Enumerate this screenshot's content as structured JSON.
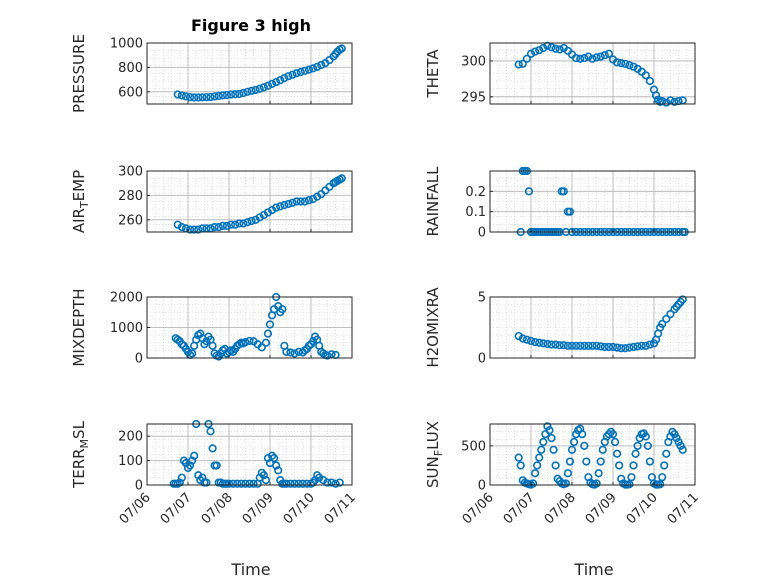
{
  "title": "Figure 3 high",
  "x_axis_label": "Time",
  "x_tick_labels": [
    "07/06",
    "07/07",
    "07/08",
    "07/09",
    "07/10",
    "07/11"
  ],
  "colors": {
    "marker": "#0072bd",
    "axis": "#262626",
    "grid": "#b0b0b0"
  },
  "chart_data": [
    {
      "type": "scatter",
      "ylabel": "PRESSURE",
      "xlim": [
        0,
        5
      ],
      "ylim": [
        500,
        1000
      ],
      "yticks": [
        600,
        800,
        1000
      ],
      "ytick_labels": [
        "600",
        "800",
        "1000"
      ],
      "x": [
        0.75,
        0.85,
        0.95,
        1.05,
        1.15,
        1.25,
        1.35,
        1.45,
        1.55,
        1.65,
        1.75,
        1.85,
        1.95,
        2.05,
        2.15,
        2.25,
        2.35,
        2.45,
        2.55,
        2.65,
        2.75,
        2.85,
        2.95,
        3.05,
        3.15,
        3.25,
        3.35,
        3.45,
        3.55,
        3.65,
        3.75,
        3.85,
        3.95,
        4.05,
        4.15,
        4.25,
        4.35,
        4.45,
        4.55,
        4.6,
        4.65,
        4.7,
        4.75
      ],
      "y": [
        578,
        570,
        562,
        556,
        553,
        553,
        555,
        556,
        557,
        562,
        566,
        571,
        574,
        578,
        580,
        582,
        590,
        600,
        608,
        615,
        625,
        636,
        650,
        665,
        680,
        695,
        712,
        728,
        740,
        752,
        762,
        772,
        782,
        792,
        805,
        820,
        835,
        860,
        890,
        910,
        930,
        945,
        955
      ]
    },
    {
      "type": "scatter",
      "ylabel": "THETA",
      "xlim": [
        0,
        5
      ],
      "ylim": [
        294,
        302.5
      ],
      "yticks": [
        295,
        300
      ],
      "ytick_labels": [
        "295",
        "300"
      ],
      "x": [
        0.7,
        0.8,
        0.9,
        1.0,
        1.1,
        1.2,
        1.3,
        1.4,
        1.5,
        1.6,
        1.7,
        1.8,
        1.9,
        2.0,
        2.1,
        2.2,
        2.3,
        2.4,
        2.5,
        2.6,
        2.7,
        2.8,
        2.9,
        3.0,
        3.1,
        3.2,
        3.3,
        3.4,
        3.5,
        3.6,
        3.7,
        3.8,
        3.9,
        4.0,
        4.05,
        4.1,
        4.15,
        4.2,
        4.3,
        4.4,
        4.5,
        4.6,
        4.7
      ],
      "y": [
        299.5,
        299.6,
        300.3,
        301.0,
        301.3,
        301.5,
        301.8,
        302.1,
        301.9,
        301.7,
        301.6,
        301.8,
        301.4,
        300.9,
        300.4,
        300.3,
        300.4,
        300.6,
        300.3,
        300.5,
        300.6,
        300.8,
        301.0,
        300.2,
        299.8,
        299.7,
        299.6,
        299.4,
        299.2,
        298.9,
        298.5,
        298.0,
        297.2,
        296.0,
        295.2,
        294.6,
        294.3,
        294.4,
        294.2,
        294.5,
        294.3,
        294.4,
        294.5
      ]
    },
    {
      "type": "scatter",
      "ylabel": "AIR_TEMP",
      "xlim": [
        0,
        5
      ],
      "ylim": [
        250,
        300
      ],
      "yticks": [
        260,
        280,
        300
      ],
      "ytick_labels": [
        "260",
        "280",
        "300"
      ],
      "x": [
        0.75,
        0.85,
        0.95,
        1.05,
        1.15,
        1.25,
        1.35,
        1.45,
        1.55,
        1.65,
        1.75,
        1.85,
        1.95,
        2.05,
        2.15,
        2.25,
        2.35,
        2.45,
        2.55,
        2.65,
        2.75,
        2.85,
        2.95,
        3.05,
        3.15,
        3.25,
        3.35,
        3.45,
        3.55,
        3.65,
        3.75,
        3.85,
        3.95,
        4.05,
        4.15,
        4.25,
        4.35,
        4.45,
        4.55,
        4.6,
        4.65,
        4.7,
        4.75
      ],
      "y": [
        256,
        254,
        253,
        252,
        252,
        252,
        253,
        253,
        253,
        254,
        254,
        255,
        255,
        256,
        256,
        257,
        257,
        258,
        259,
        260,
        262,
        264,
        266,
        268,
        270,
        271,
        272,
        273,
        274,
        275,
        275,
        275,
        276,
        277,
        279,
        281,
        284,
        287,
        290,
        291,
        292,
        293,
        294
      ]
    },
    {
      "type": "scatter",
      "ylabel": "RAINFALL",
      "xlim": [
        0,
        5
      ],
      "ylim": [
        0,
        0.3
      ],
      "yticks": [
        0,
        0.1,
        0.2
      ],
      "ytick_labels": [
        "0",
        "0.1",
        "0.2"
      ],
      "x": [
        0.75,
        0.8,
        0.85,
        0.9,
        0.95,
        1.0,
        1.05,
        1.1,
        1.15,
        1.2,
        1.25,
        1.3,
        1.35,
        1.4,
        1.45,
        1.5,
        1.55,
        1.6,
        1.65,
        1.7,
        1.75,
        1.8,
        1.85,
        1.9,
        1.95,
        2.0,
        2.1,
        2.2,
        2.3,
        2.4,
        2.5,
        2.6,
        2.7,
        2.8,
        2.9,
        3.0,
        3.1,
        3.2,
        3.3,
        3.4,
        3.5,
        3.6,
        3.7,
        3.8,
        3.9,
        4.0,
        4.1,
        4.2,
        4.3,
        4.4,
        4.5,
        4.6,
        4.7,
        4.75
      ],
      "y": [
        0,
        0.3,
        0.3,
        0.3,
        0.2,
        0,
        0,
        0,
        0,
        0,
        0,
        0,
        0,
        0,
        0,
        0,
        0,
        0,
        0,
        0,
        0.2,
        0.2,
        0,
        0.1,
        0.1,
        0,
        0,
        0,
        0,
        0,
        0,
        0,
        0,
        0,
        0,
        0,
        0,
        0,
        0,
        0,
        0,
        0,
        0,
        0,
        0,
        0,
        0,
        0,
        0,
        0,
        0,
        0,
        0,
        0
      ]
    },
    {
      "type": "scatter",
      "ylabel": "MIXDEPTH",
      "xlim": [
        0,
        5
      ],
      "ylim": [
        0,
        2000
      ],
      "yticks": [
        0,
        1000,
        2000
      ],
      "ytick_labels": [
        "0",
        "1000",
        "2000"
      ],
      "x": [
        0.7,
        0.75,
        0.8,
        0.85,
        0.9,
        0.95,
        1.0,
        1.05,
        1.1,
        1.15,
        1.2,
        1.25,
        1.3,
        1.35,
        1.4,
        1.45,
        1.5,
        1.55,
        1.6,
        1.65,
        1.7,
        1.75,
        1.8,
        1.85,
        1.9,
        1.95,
        2.0,
        2.05,
        2.1,
        2.15,
        2.2,
        2.25,
        2.3,
        2.35,
        2.4,
        2.5,
        2.6,
        2.7,
        2.8,
        2.9,
        2.95,
        3.0,
        3.05,
        3.1,
        3.15,
        3.2,
        3.25,
        3.3,
        3.35,
        3.4,
        3.5,
        3.6,
        3.7,
        3.8,
        3.85,
        3.9,
        3.95,
        4.0,
        4.05,
        4.1,
        4.15,
        4.2,
        4.25,
        4.3,
        4.35,
        4.4,
        4.5,
        4.6
      ],
      "y": [
        650,
        600,
        550,
        450,
        400,
        300,
        200,
        100,
        150,
        400,
        600,
        750,
        800,
        650,
        450,
        550,
        700,
        600,
        400,
        150,
        80,
        50,
        150,
        250,
        300,
        150,
        200,
        250,
        200,
        300,
        400,
        450,
        500,
        480,
        520,
        560,
        550,
        450,
        350,
        500,
        800,
        1100,
        1400,
        1600,
        2000,
        1700,
        1500,
        1600,
        400,
        200,
        180,
        150,
        200,
        180,
        250,
        300,
        400,
        450,
        550,
        700,
        600,
        400,
        200,
        150,
        100,
        80,
        120,
        100
      ]
    },
    {
      "type": "scatter",
      "ylabel": "H2OMIXRA",
      "xlim": [
        0,
        5
      ],
      "ylim": [
        0,
        5
      ],
      "yticks": [
        0,
        5
      ],
      "ytick_labels": [
        "0",
        "5"
      ],
      "x": [
        0.7,
        0.8,
        0.9,
        1.0,
        1.1,
        1.2,
        1.3,
        1.4,
        1.5,
        1.6,
        1.7,
        1.8,
        1.9,
        2.0,
        2.1,
        2.2,
        2.3,
        2.4,
        2.5,
        2.6,
        2.7,
        2.8,
        2.9,
        3.0,
        3.1,
        3.2,
        3.3,
        3.4,
        3.5,
        3.6,
        3.7,
        3.8,
        3.9,
        4.0,
        4.05,
        4.1,
        4.15,
        4.2,
        4.3,
        4.4,
        4.5,
        4.55,
        4.6,
        4.65,
        4.7
      ],
      "y": [
        1.8,
        1.6,
        1.5,
        1.4,
        1.3,
        1.25,
        1.2,
        1.15,
        1.1,
        1.1,
        1.05,
        1.05,
        1.0,
        1.0,
        1.0,
        1.0,
        1.0,
        1.0,
        1.0,
        1.0,
        0.95,
        0.9,
        0.9,
        0.9,
        0.85,
        0.8,
        0.8,
        0.85,
        0.9,
        0.95,
        1.0,
        1.0,
        1.1,
        1.2,
        1.5,
        2.0,
        2.5,
        2.8,
        3.2,
        3.6,
        4.0,
        4.2,
        4.4,
        4.6,
        4.8
      ]
    },
    {
      "type": "scatter",
      "ylabel": "TERR_MSL",
      "xlim": [
        0,
        5
      ],
      "ylim": [
        0,
        250
      ],
      "yticks": [
        0,
        100,
        200
      ],
      "ytick_labels": [
        "0",
        "100",
        "200"
      ],
      "x": [
        0.65,
        0.7,
        0.75,
        0.8,
        0.85,
        0.9,
        0.95,
        1.0,
        1.05,
        1.1,
        1.15,
        1.2,
        1.25,
        1.3,
        1.35,
        1.4,
        1.45,
        1.5,
        1.55,
        1.6,
        1.65,
        1.7,
        1.75,
        1.8,
        1.85,
        1.9,
        1.95,
        2.0,
        2.1,
        2.2,
        2.3,
        2.4,
        2.5,
        2.6,
        2.7,
        2.75,
        2.8,
        2.85,
        2.9,
        2.95,
        3.0,
        3.05,
        3.1,
        3.15,
        3.2,
        3.25,
        3.3,
        3.35,
        3.4,
        3.5,
        3.6,
        3.7,
        3.8,
        3.9,
        4.0,
        4.05,
        4.1,
        4.15,
        4.2,
        4.3,
        4.4,
        4.5,
        4.6,
        4.7
      ],
      "y": [
        5,
        5,
        5,
        10,
        30,
        100,
        90,
        70,
        80,
        100,
        120,
        250,
        40,
        20,
        30,
        10,
        10,
        250,
        220,
        150,
        80,
        80,
        10,
        10,
        5,
        5,
        5,
        5,
        5,
        5,
        5,
        5,
        5,
        5,
        5,
        30,
        50,
        40,
        20,
        110,
        90,
        120,
        110,
        80,
        60,
        20,
        5,
        5,
        5,
        5,
        5,
        5,
        5,
        5,
        5,
        10,
        20,
        40,
        30,
        20,
        10,
        10,
        5,
        10
      ]
    },
    {
      "type": "scatter",
      "ylabel": "SUN_FLUX",
      "xlim": [
        0,
        5
      ],
      "ylim": [
        0,
        780
      ],
      "yticks": [
        0,
        500
      ],
      "ytick_labels": [
        "0",
        "500"
      ],
      "x": [
        0.7,
        0.75,
        0.8,
        0.85,
        0.9,
        0.95,
        1.0,
        1.05,
        1.1,
        1.15,
        1.2,
        1.25,
        1.3,
        1.35,
        1.4,
        1.45,
        1.5,
        1.55,
        1.6,
        1.65,
        1.7,
        1.75,
        1.8,
        1.85,
        1.9,
        1.95,
        2.0,
        2.05,
        2.1,
        2.15,
        2.2,
        2.25,
        2.3,
        2.35,
        2.4,
        2.45,
        2.5,
        2.55,
        2.6,
        2.65,
        2.7,
        2.75,
        2.8,
        2.85,
        2.9,
        2.95,
        3.0,
        3.05,
        3.1,
        3.15,
        3.2,
        3.25,
        3.3,
        3.35,
        3.4,
        3.45,
        3.5,
        3.55,
        3.6,
        3.65,
        3.7,
        3.75,
        3.8,
        3.85,
        3.9,
        3.95,
        4.0,
        4.05,
        4.1,
        4.15,
        4.2,
        4.25,
        4.3,
        4.35,
        4.4,
        4.45,
        4.5,
        4.55,
        4.6,
        4.65,
        4.7
      ],
      "y": [
        350,
        250,
        60,
        30,
        20,
        10,
        5,
        20,
        150,
        250,
        350,
        450,
        550,
        650,
        750,
        700,
        600,
        450,
        250,
        80,
        50,
        20,
        10,
        20,
        150,
        300,
        450,
        550,
        650,
        700,
        720,
        650,
        500,
        300,
        100,
        30,
        10,
        5,
        20,
        150,
        300,
        450,
        550,
        620,
        650,
        680,
        650,
        550,
        400,
        250,
        80,
        20,
        5,
        5,
        10,
        100,
        250,
        400,
        500,
        600,
        650,
        660,
        620,
        500,
        300,
        100,
        20,
        5,
        5,
        10,
        100,
        250,
        400,
        550,
        620,
        680,
        650,
        600,
        550,
        500,
        450
      ]
    }
  ]
}
